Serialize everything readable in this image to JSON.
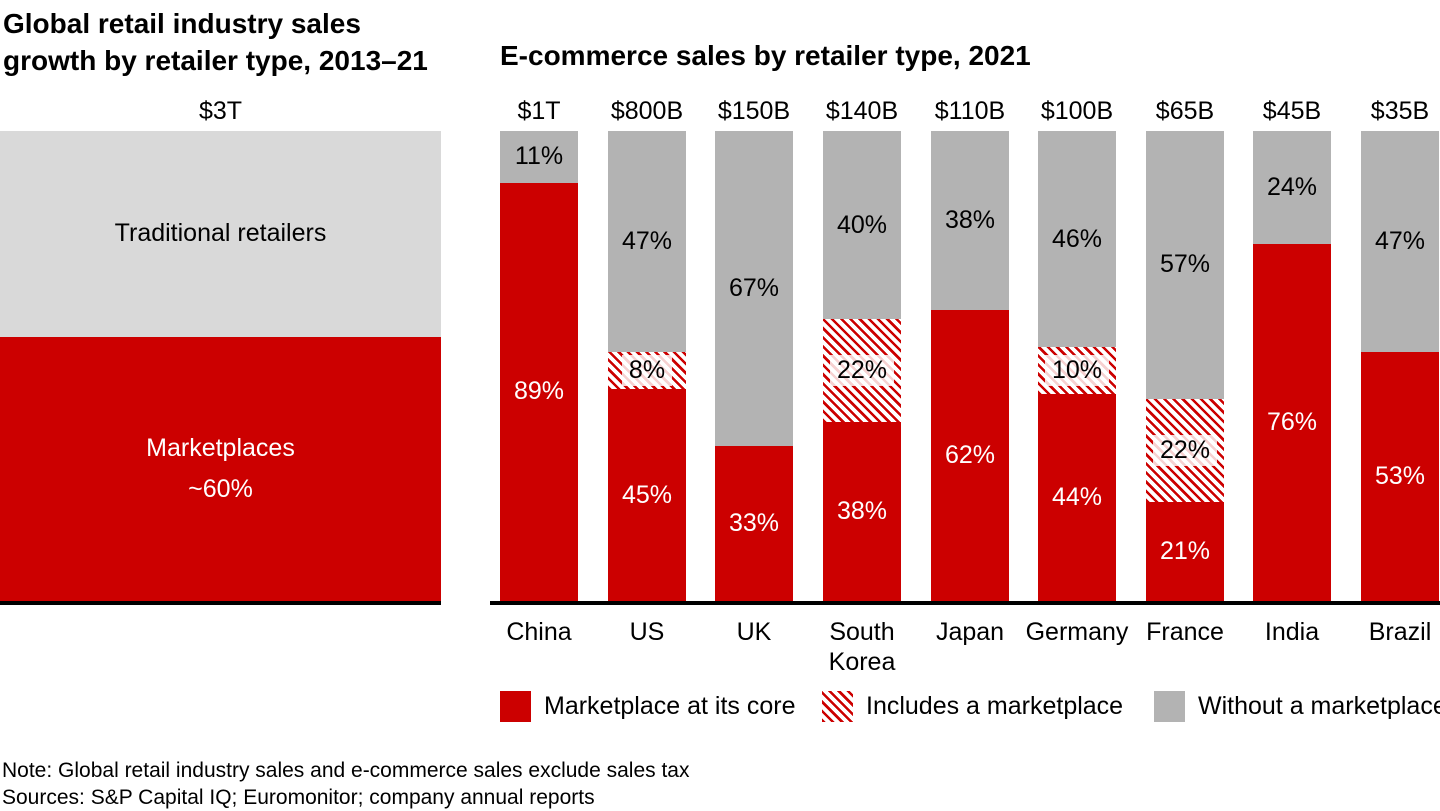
{
  "colors": {
    "marketplace_red": "#cc0000",
    "without_gray": "#b3b3b3",
    "traditional_gray_light": "#d9d9d9",
    "axis_black": "#000000"
  },
  "footnote": {
    "note": "Note: Global retail industry sales and e-commerce sales exclude sales tax",
    "sources": "Sources: S&P Capital IQ; Euromonitor; company annual reports"
  },
  "chart_data": [
    {
      "type": "bar",
      "stacked": true,
      "orientation": "vertical",
      "title": "Global retail industry sales\ngrowth by retailer type, 2013–21",
      "categories": [
        "Global retail industry"
      ],
      "total_labels": [
        "$3T"
      ],
      "series": [
        {
          "name": "Marketplaces",
          "values": [
            60
          ],
          "value_labels": [
            "~60%"
          ],
          "color": "#cc0000",
          "pattern": "solid"
        },
        {
          "name": "Traditional retailers",
          "values": [
            40
          ],
          "value_labels": [
            ""
          ],
          "color": "#d9d9d9",
          "pattern": "solid"
        }
      ],
      "ylim": [
        0,
        100
      ],
      "grid": false,
      "axis_line": "bottom"
    },
    {
      "type": "bar",
      "stacked": true,
      "orientation": "vertical",
      "title": "E-commerce sales by retailer type, 2021",
      "categories": [
        "China",
        "US",
        "UK",
        "South Korea",
        "Japan",
        "Germany",
        "France",
        "India",
        "Brazil"
      ],
      "total_labels": [
        "$1T",
        "$800B",
        "$150B",
        "$140B",
        "$110B",
        "$100B",
        "$65B",
        "$45B",
        "$35B"
      ],
      "series": [
        {
          "name": "Marketplace at its core",
          "values": [
            89,
            45,
            33,
            38,
            62,
            44,
            21,
            76,
            53
          ],
          "color": "#cc0000",
          "pattern": "solid"
        },
        {
          "name": "Includes a marketplace",
          "values": [
            0,
            8,
            0,
            22,
            0,
            10,
            22,
            0,
            0
          ],
          "color": "#cc0000",
          "pattern": "diagonal-hatch"
        },
        {
          "name": "Without a marketplace",
          "values": [
            11,
            47,
            67,
            40,
            38,
            46,
            57,
            24,
            47
          ],
          "color": "#b3b3b3",
          "pattern": "solid"
        }
      ],
      "ylim": [
        0,
        100
      ],
      "grid": false,
      "legend_position": "bottom",
      "axis_line": "bottom"
    }
  ]
}
